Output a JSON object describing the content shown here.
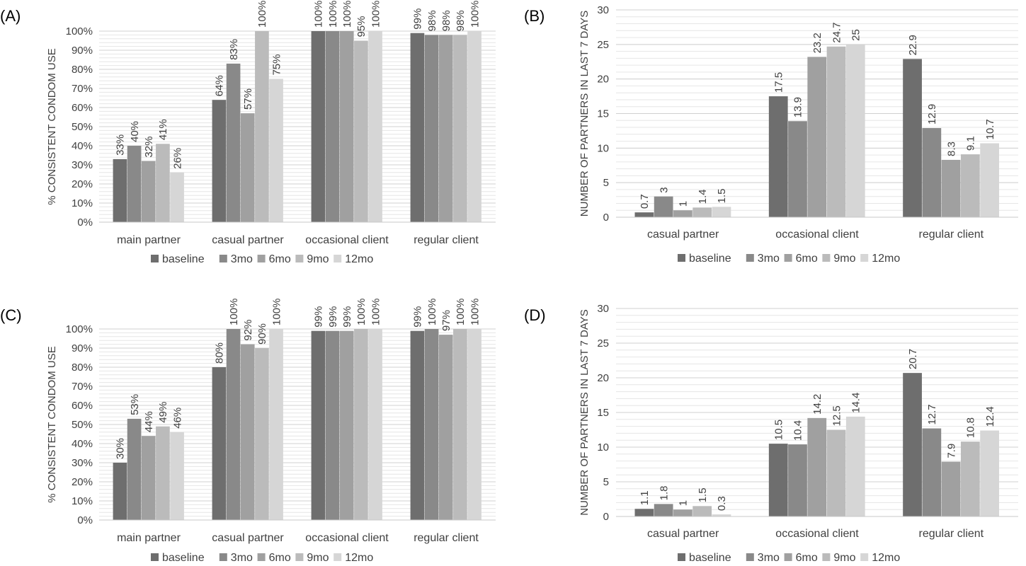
{
  "colors": {
    "baseline": "#6e6e6e",
    "3mo": "#898989",
    "6mo": "#a0a0a0",
    "9mo": "#bbbbbb",
    "12mo": "#d6d6d6",
    "minor_grid": "#e6e6e6",
    "major_grid": "#d0d0d0"
  },
  "legend": [
    "baseline",
    "3mo",
    "6mo",
    "9mo",
    "12mo"
  ],
  "chart_data": [
    {
      "panel": "(A)",
      "type": "bar",
      "ylabel": "% CONSISTENT CONDOM USE",
      "ylim": [
        0,
        100
      ],
      "y_ticks": [
        "0%",
        "10%",
        "20%",
        "30%",
        "40%",
        "50%",
        "60%",
        "70%",
        "80%",
        "90%",
        "100%"
      ],
      "categories": [
        "main partner",
        "casual partner",
        "occasional client",
        "regular client"
      ],
      "series": [
        {
          "name": "baseline",
          "values": [
            33,
            64,
            100,
            99
          ],
          "labels": [
            "33%",
            "64%",
            "100%",
            "99%"
          ]
        },
        {
          "name": "3mo",
          "values": [
            40,
            83,
            100,
            98
          ],
          "labels": [
            "40%",
            "83%",
            "100%",
            "98%"
          ]
        },
        {
          "name": "6mo",
          "values": [
            32,
            57,
            100,
            98
          ],
          "labels": [
            "32%",
            "57%",
            "100%",
            "98%"
          ]
        },
        {
          "name": "9mo",
          "values": [
            41,
            100,
            95,
            98
          ],
          "labels": [
            "41%",
            "100%",
            "95%",
            "98%"
          ]
        },
        {
          "name": "12mo",
          "values": [
            26,
            75,
            100,
            100
          ],
          "labels": [
            "26%",
            "75%",
            "100%",
            "100%"
          ]
        }
      ]
    },
    {
      "panel": "(B)",
      "type": "bar",
      "ylabel": "NUMBER OF PARTNERS IN LAST 7  DAYS",
      "ylim": [
        0,
        30
      ],
      "y_ticks": [
        "0",
        "5",
        "10",
        "15",
        "20",
        "25",
        "30"
      ],
      "categories": [
        "casual partner",
        "occasional client",
        "regular client"
      ],
      "series": [
        {
          "name": "baseline",
          "values": [
            0.7,
            17.5,
            22.9
          ],
          "labels": [
            "0.7",
            "17.5",
            "22.9"
          ]
        },
        {
          "name": "3mo",
          "values": [
            3,
            13.9,
            12.9
          ],
          "labels": [
            "3",
            "13.9",
            "12.9"
          ]
        },
        {
          "name": "6mo",
          "values": [
            1,
            23.2,
            8.3
          ],
          "labels": [
            "1",
            "23.2",
            "8.3"
          ]
        },
        {
          "name": "9mo",
          "values": [
            1.4,
            24.7,
            9.1
          ],
          "labels": [
            "1.4",
            "24.7",
            "9.1"
          ]
        },
        {
          "name": "12mo",
          "values": [
            1.5,
            25,
            10.7
          ],
          "labels": [
            "1.5",
            "25",
            "10.7"
          ]
        }
      ]
    },
    {
      "panel": "(C)",
      "type": "bar",
      "ylabel": "% CONSISTENT CONDOM USE",
      "ylim": [
        0,
        100
      ],
      "y_ticks": [
        "0%",
        "10%",
        "20%",
        "30%",
        "40%",
        "50%",
        "60%",
        "70%",
        "80%",
        "90%",
        "100%"
      ],
      "categories": [
        "main partner",
        "casual partner",
        "occasional client",
        "regular client"
      ],
      "series": [
        {
          "name": "baseline",
          "values": [
            30,
            80,
            99,
            99
          ],
          "labels": [
            "30%",
            "80%",
            "99%",
            "99%"
          ]
        },
        {
          "name": "3mo",
          "values": [
            53,
            100,
            99,
            100
          ],
          "labels": [
            "53%",
            "100%",
            "99%",
            "100%"
          ]
        },
        {
          "name": "6mo",
          "values": [
            44,
            92,
            99,
            97
          ],
          "labels": [
            "44%",
            "92%",
            "99%",
            "97%"
          ]
        },
        {
          "name": "9mo",
          "values": [
            49,
            90,
            100,
            100
          ],
          "labels": [
            "49%",
            "90%",
            "100%",
            "100%"
          ]
        },
        {
          "name": "12mo",
          "values": [
            46,
            100,
            100,
            100
          ],
          "labels": [
            "46%",
            "100%",
            "100%",
            "100%"
          ]
        }
      ]
    },
    {
      "panel": "(D)",
      "type": "bar",
      "ylabel": "NUMBER OF PARTNERS IN LAST 7  DAYS",
      "ylim": [
        0,
        30
      ],
      "y_ticks": [
        "0",
        "5",
        "10",
        "15",
        "20",
        "25",
        "30"
      ],
      "categories": [
        "casual partner",
        "occasional client",
        "regular client"
      ],
      "series": [
        {
          "name": "baseline",
          "values": [
            1.1,
            10.5,
            20.7
          ],
          "labels": [
            "1.1",
            "10.5",
            "20.7"
          ]
        },
        {
          "name": "3mo",
          "values": [
            1.8,
            10.4,
            12.7
          ],
          "labels": [
            "1.8",
            "10.4",
            "12.7"
          ]
        },
        {
          "name": "6mo",
          "values": [
            1,
            14.2,
            7.9
          ],
          "labels": [
            "1",
            "14.2",
            "7.9"
          ]
        },
        {
          "name": "9mo",
          "values": [
            1.5,
            12.5,
            10.8
          ],
          "labels": [
            "1.5",
            "12.5",
            "10.8"
          ]
        },
        {
          "name": "12mo",
          "values": [
            0.3,
            14.4,
            12.4
          ],
          "labels": [
            "0.3",
            "14.4",
            "12.4"
          ]
        }
      ]
    }
  ]
}
